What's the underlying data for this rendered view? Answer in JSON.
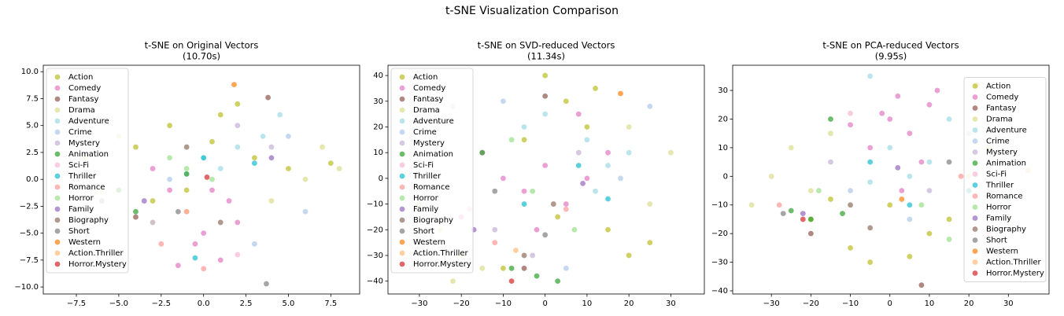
{
  "title": "t-SNE Visualization Comparison",
  "chart_data": [
    {
      "type": "scatter",
      "title": "t-SNE on Original Vectors",
      "subtitle": "(10.70s)",
      "legend": "upper left",
      "xlim": [
        -9.45,
        9.2
      ],
      "ylim": [
        -10.65,
        10.6
      ],
      "xticks": [
        {
          "value": -7.5,
          "label": "−7.5"
        },
        {
          "value": -5,
          "label": "−5.0"
        },
        {
          "value": -2.5,
          "label": "−2.5"
        },
        {
          "value": 0,
          "label": "0.0"
        },
        2.5,
        {
          "value": 5,
          "label": "5.0"
        },
        7.5
      ],
      "yticks": [
        {
          "value": -10,
          "label": "−10.0"
        },
        {
          "value": -7.5,
          "label": "−7.5"
        },
        {
          "value": -5,
          "label": "−5.0"
        },
        {
          "value": -2.5,
          "label": "−2.5"
        },
        {
          "value": 0,
          "label": "0.0"
        },
        2.5,
        {
          "value": 5,
          "label": "5.0"
        },
        7.5,
        {
          "value": 10,
          "label": "10.0"
        }
      ],
      "series": [
        {
          "name": "Action",
          "color": "#bcbd22",
          "x": [
            -2,
            -4,
            1,
            3,
            -1,
            5,
            -3,
            0.5,
            2,
            7.5
          ],
          "y": [
            5,
            3,
            6,
            2,
            -1,
            1,
            -2,
            3.5,
            7,
            1.5
          ]
        },
        {
          "name": "Comedy",
          "color": "#e377c2",
          "x": [
            -1,
            0,
            1.5,
            -2,
            -0.5,
            2,
            -3,
            1,
            0.5,
            -1.5
          ],
          "y": [
            -3,
            -5,
            -2,
            -1,
            -6,
            -4,
            1,
            -7.5,
            -1,
            -8
          ]
        },
        {
          "name": "Fantasy",
          "color": "#8c564b",
          "x": [
            -4,
            3.8
          ],
          "y": [
            -3.5,
            7.6
          ]
        },
        {
          "name": "Drama",
          "color": "#dbdb8d",
          "x": [
            -7,
            -5,
            6,
            8,
            -3,
            4,
            7,
            -6
          ],
          "y": [
            2,
            4,
            0,
            1,
            -4,
            -2,
            3,
            -1
          ]
        },
        {
          "name": "Adventure",
          "color": "#9edae5",
          "x": [
            1,
            2,
            3.5,
            -1,
            4.5,
            0
          ],
          "y": [
            1,
            3,
            4,
            0.5,
            6,
            2
          ]
        },
        {
          "name": "Crime",
          "color": "#aec7e8",
          "x": [
            6,
            5,
            3,
            -2
          ],
          "y": [
            -3,
            4,
            -6,
            0
          ]
        },
        {
          "name": "Mystery",
          "color": "#c5b0d5",
          "x": [
            -3,
            2,
            4
          ],
          "y": [
            -4,
            5,
            3
          ]
        },
        {
          "name": "Animation",
          "color": "#2ca02c",
          "x": [
            -5,
            -6,
            -4,
            -1
          ],
          "y": [
            -1,
            -2,
            -3,
            0.5
          ]
        },
        {
          "name": "Sci-Fi",
          "color": "#f7b6d2",
          "x": [
            -6,
            2
          ],
          "y": [
            -2,
            -7
          ]
        },
        {
          "name": "Thriller",
          "color": "#17becf",
          "x": [
            0,
            -0.5,
            3
          ],
          "y": [
            2,
            -7.3,
            1.5
          ]
        },
        {
          "name": "Romance",
          "color": "#ff9896",
          "x": [
            -2.5,
            0
          ],
          "y": [
            -6,
            -8.3
          ]
        },
        {
          "name": "Horror",
          "color": "#98df8a",
          "x": [
            -1,
            0.5,
            -2
          ],
          "y": [
            1,
            0,
            2
          ]
        },
        {
          "name": "Family",
          "color": "#9467bd",
          "x": [
            -3.5,
            4
          ],
          "y": [
            -2,
            2
          ]
        },
        {
          "name": "Biography",
          "color": "#8c6d5b",
          "x": [
            1,
            -1
          ],
          "y": [
            -4,
            3
          ]
        },
        {
          "name": "Short",
          "color": "#7f7f7f",
          "x": [
            3.7,
            -1.5
          ],
          "y": [
            -9.7,
            -3
          ]
        },
        {
          "name": "Western",
          "color": "#ff7f0e",
          "x": [
            1.8
          ],
          "y": [
            8.8
          ]
        },
        {
          "name": "Action.Thriller",
          "color": "#ffbb78",
          "x": [
            -1
          ],
          "y": [
            -3
          ]
        },
        {
          "name": "Horror.Mystery",
          "color": "#d62728",
          "x": [
            0.2
          ],
          "y": [
            0.2
          ]
        }
      ]
    },
    {
      "type": "scatter",
      "title": "t-SNE on SVD-reduced Vectors",
      "subtitle": "(11.34s)",
      "legend": "upper left",
      "xlim": [
        -37.5,
        38
      ],
      "ylim": [
        -45,
        44
      ],
      "xticks": [
        {
          "value": -30,
          "label": "−30"
        },
        {
          "value": -20,
          "label": "−20"
        },
        {
          "value": -10,
          "label": "−10"
        },
        0,
        10,
        20,
        30
      ],
      "yticks": [
        {
          "value": -40,
          "label": "−40"
        },
        {
          "value": -30,
          "label": "−30"
        },
        {
          "value": -20,
          "label": "−20"
        },
        {
          "value": -10,
          "label": "−10"
        },
        0,
        10,
        20,
        30,
        40
      ],
      "series": [
        {
          "name": "Action",
          "color": "#bcbd22",
          "x": [
            5,
            10,
            15,
            20,
            -5,
            0,
            -10,
            25,
            12,
            3
          ],
          "y": [
            30,
            20,
            -20,
            -30,
            15,
            40,
            -35,
            -25,
            35,
            -15
          ]
        },
        {
          "name": "Comedy",
          "color": "#e377c2",
          "x": [
            -10,
            -5,
            0,
            5,
            -15,
            10,
            -20,
            8,
            -2,
            15
          ],
          "y": [
            0,
            -5,
            5,
            -10,
            10,
            0,
            -15,
            25,
            -20,
            10
          ]
        },
        {
          "name": "Fantasy",
          "color": "#8c564b",
          "x": [
            0,
            -5
          ],
          "y": [
            32,
            -35
          ]
        },
        {
          "name": "Drama",
          "color": "#dbdb8d",
          "x": [
            -25,
            -20,
            -30,
            20,
            25,
            -15,
            30,
            -22
          ],
          "y": [
            -20,
            -30,
            -10,
            20,
            -10,
            -35,
            10,
            -40
          ]
        },
        {
          "name": "Adventure",
          "color": "#9edae5",
          "x": [
            10,
            15,
            0,
            20,
            -5,
            12
          ],
          "y": [
            15,
            5,
            25,
            10,
            20,
            -5
          ]
        },
        {
          "name": "Crime",
          "color": "#aec7e8",
          "x": [
            25,
            -10,
            5,
            18
          ],
          "y": [
            28,
            30,
            -35,
            0
          ]
        },
        {
          "name": "Mystery",
          "color": "#c5b0d5",
          "x": [
            -12,
            8,
            -3
          ],
          "y": [
            -20,
            10,
            -30
          ]
        },
        {
          "name": "Animation",
          "color": "#2ca02c",
          "x": [
            -8,
            -2,
            3,
            -15
          ],
          "y": [
            -35,
            -38,
            -40,
            10
          ]
        },
        {
          "name": "Sci-Fi",
          "color": "#f7b6d2",
          "x": [
            -22,
            -18
          ],
          "y": [
            28,
            -12
          ]
        },
        {
          "name": "Thriller",
          "color": "#17becf",
          "x": [
            8,
            -5,
            15
          ],
          "y": [
            5,
            -10,
            -8
          ]
        },
        {
          "name": "Romance",
          "color": "#ff9896",
          "x": [
            -12,
            5
          ],
          "y": [
            -25,
            -12
          ]
        },
        {
          "name": "Horror",
          "color": "#98df8a",
          "x": [
            -3,
            7,
            -8
          ],
          "y": [
            -5,
            -20,
            15
          ]
        },
        {
          "name": "Family",
          "color": "#9467bd",
          "x": [
            -17,
            9
          ],
          "y": [
            -20,
            -2
          ]
        },
        {
          "name": "Biography",
          "color": "#8c6d5b",
          "x": [
            -5,
            2
          ],
          "y": [
            -30,
            -10
          ]
        },
        {
          "name": "Short",
          "color": "#7f7f7f",
          "x": [
            -12,
            0
          ],
          "y": [
            -5,
            -22
          ]
        },
        {
          "name": "Western",
          "color": "#ff7f0e",
          "x": [
            18
          ],
          "y": [
            33
          ]
        },
        {
          "name": "Action.Thriller",
          "color": "#ffbb78",
          "x": [
            -7
          ],
          "y": [
            -28
          ]
        },
        {
          "name": "Horror.Mystery",
          "color": "#d62728",
          "x": [
            -8
          ],
          "y": [
            -40
          ]
        }
      ]
    },
    {
      "type": "scatter",
      "title": "t-SNE on PCA-reduced Vectors",
      "subtitle": "(9.95s)",
      "legend": "center right",
      "xlim": [
        -39.8,
        40.3
      ],
      "ylim": [
        -41.1,
        38.8
      ],
      "xticks": [
        {
          "value": -30,
          "label": "−30"
        },
        {
          "value": -20,
          "label": "−20"
        },
        {
          "value": -10,
          "label": "−10"
        },
        0,
        10,
        20,
        30
      ],
      "yticks": [
        {
          "value": -40,
          "label": "−40"
        },
        {
          "value": -30,
          "label": "−30"
        },
        {
          "value": -20,
          "label": "−20"
        },
        {
          "value": -10,
          "label": "−10"
        },
        0,
        10,
        20,
        30
      ],
      "series": [
        {
          "name": "Action",
          "color": "#bcbd22",
          "x": [
            -20,
            -10,
            0,
            10,
            20,
            -5,
            5,
            15,
            -15,
            22
          ],
          "y": [
            -15,
            -25,
            -10,
            -20,
            -5,
            -30,
            -28,
            -15,
            -8,
            32
          ]
        },
        {
          "name": "Comedy",
          "color": "#e377c2",
          "x": [
            0,
            5,
            10,
            -5,
            2,
            8,
            -10,
            3,
            12,
            -2
          ],
          "y": [
            20,
            15,
            25,
            10,
            28,
            5,
            18,
            -5,
            30,
            22
          ]
        },
        {
          "name": "Fantasy",
          "color": "#8c564b",
          "x": [
            -20,
            8
          ],
          "y": [
            -20,
            -38
          ]
        },
        {
          "name": "Drama",
          "color": "#dbdb8d",
          "x": [
            -30,
            -25,
            -20,
            -15,
            20,
            25,
            30,
            -35
          ],
          "y": [
            0,
            10,
            -5,
            15,
            0,
            10,
            -15,
            -10
          ]
        },
        {
          "name": "Adventure",
          "color": "#9edae5",
          "x": [
            0,
            5,
            10,
            -5,
            15,
            -5
          ],
          "y": [
            10,
            0,
            5,
            -2,
            20,
            35
          ]
        },
        {
          "name": "Crime",
          "color": "#aec7e8",
          "x": [
            20,
            -10,
            30,
            5
          ],
          "y": [
            15,
            -5,
            -8,
            -15
          ]
        },
        {
          "name": "Mystery",
          "color": "#c5b0d5",
          "x": [
            -15,
            10,
            28
          ],
          "y": [
            5,
            -5,
            5
          ]
        },
        {
          "name": "Animation",
          "color": "#2ca02c",
          "x": [
            -25,
            -20,
            -12,
            -15
          ],
          "y": [
            -12,
            -15,
            -13,
            20
          ]
        },
        {
          "name": "Sci-Fi",
          "color": "#f7b6d2",
          "x": [
            -10,
            25
          ],
          "y": [
            22,
            -20
          ]
        },
        {
          "name": "Thriller",
          "color": "#17becf",
          "x": [
            -5,
            5,
            20
          ],
          "y": [
            5,
            -10,
            -5
          ]
        },
        {
          "name": "Romance",
          "color": "#ff9896",
          "x": [
            -28,
            18
          ],
          "y": [
            -10,
            0
          ]
        },
        {
          "name": "Horror",
          "color": "#98df8a",
          "x": [
            -18,
            15,
            8
          ],
          "y": [
            -5,
            -22,
            -10
          ]
        },
        {
          "name": "Family",
          "color": "#9467bd",
          "x": [
            -22,
            2
          ],
          "y": [
            -13,
            3
          ]
        },
        {
          "name": "Biography",
          "color": "#8c6d5b",
          "x": [
            -10,
            -5
          ],
          "y": [
            -10,
            -18
          ]
        },
        {
          "name": "Short",
          "color": "#7f7f7f",
          "x": [
            -27,
            15
          ],
          "y": [
            -13,
            5
          ]
        },
        {
          "name": "Western",
          "color": "#ff7f0e",
          "x": [
            3
          ],
          "y": [
            -8
          ]
        },
        {
          "name": "Action.Thriller",
          "color": "#ffbb78",
          "x": [
            35
          ],
          "y": [
            2
          ]
        },
        {
          "name": "Horror.Mystery",
          "color": "#d62728",
          "x": [
            -22
          ],
          "y": [
            -15
          ]
        }
      ]
    }
  ]
}
